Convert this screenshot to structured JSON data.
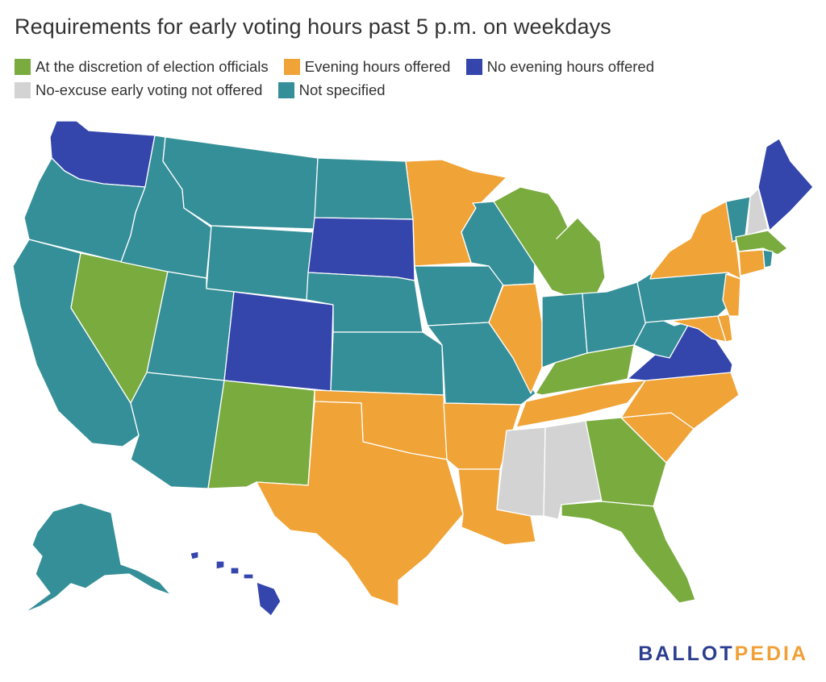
{
  "title": "Requirements for early voting hours past 5 p.m. on weekdays",
  "legend": [
    {
      "id": "discretion",
      "label": "At the discretion of election officials",
      "color": "#79ab3f"
    },
    {
      "id": "evening",
      "label": "Evening hours offered",
      "color": "#f0a336"
    },
    {
      "id": "none",
      "label": "No evening hours offered",
      "color": "#3446ac"
    },
    {
      "id": "noexcuse",
      "label": "No-excuse early voting not offered",
      "color": "#d3d3d3"
    },
    {
      "id": "unspecified",
      "label": "Not specified",
      "color": "#358f98"
    }
  ],
  "states": {
    "WA": "none",
    "OR": "unspecified",
    "CA": "unspecified",
    "NV": "discretion",
    "ID": "unspecified",
    "MT": "unspecified",
    "WY": "unspecified",
    "UT": "unspecified",
    "AZ": "unspecified",
    "CO": "none",
    "NM": "discretion",
    "ND": "unspecified",
    "SD": "none",
    "NE": "unspecified",
    "KS": "unspecified",
    "OK": "evening",
    "TX": "evening",
    "MN": "evening",
    "IA": "unspecified",
    "MO": "unspecified",
    "AR": "evening",
    "LA": "evening",
    "WI": "unspecified",
    "IL": "evening",
    "MI": "discretion",
    "IN": "unspecified",
    "OH": "unspecified",
    "KY": "discretion",
    "TN": "evening",
    "MS": "noexcuse",
    "AL": "noexcuse",
    "GA": "discretion",
    "FL": "discretion",
    "SC": "evening",
    "NC": "evening",
    "VA": "none",
    "WV": "unspecified",
    "PA": "unspecified",
    "NY": "evening",
    "NJ": "evening",
    "DE": "evening",
    "MD": "evening",
    "CT": "evening",
    "RI": "unspecified",
    "MA": "discretion",
    "VT": "unspecified",
    "NH": "noexcuse",
    "ME": "none",
    "AK": "unspecified",
    "HI": "none"
  },
  "brand": {
    "part1": "BALLOT",
    "part2": "PEDIA"
  }
}
